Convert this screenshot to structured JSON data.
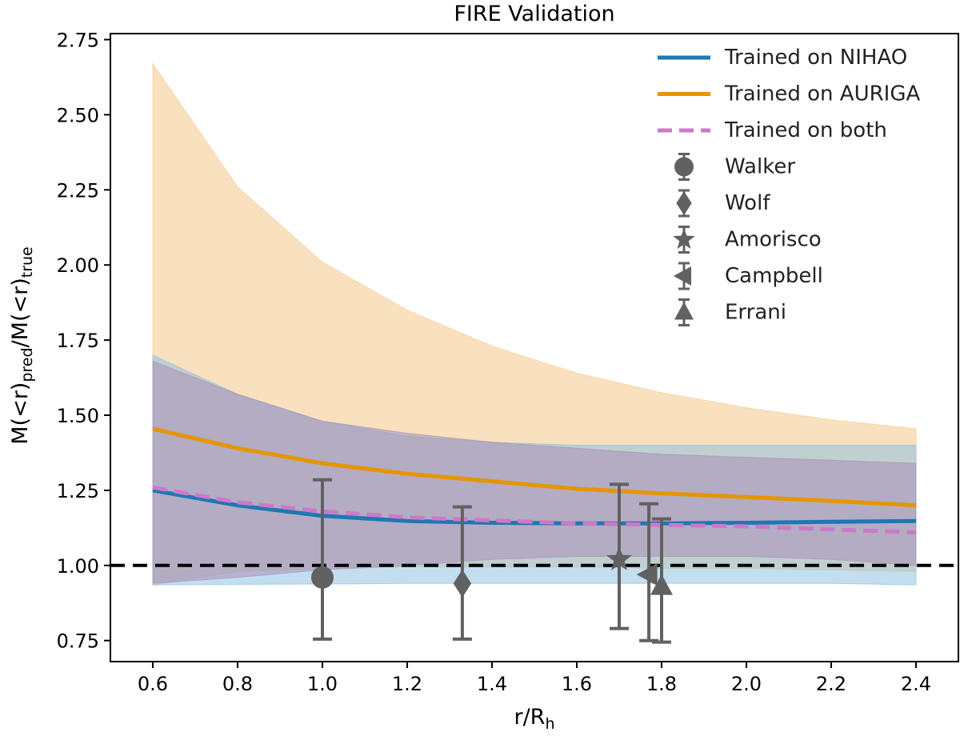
{
  "chart_data": {
    "type": "line",
    "title": "FIRE Validation",
    "xlabel": "r/R",
    "xlabel_sub": "h",
    "ylabel_parts": [
      "M(<r)",
      "pred",
      "/M(<r)",
      "true"
    ],
    "xlim": [
      0.5,
      2.5
    ],
    "ylim": [
      0.68,
      2.77
    ],
    "xticks": [
      "0.6",
      "0.8",
      "1.0",
      "1.2",
      "1.4",
      "1.6",
      "1.8",
      "2.0",
      "2.2",
      "2.4"
    ],
    "yticks": [
      "0.75",
      "1.00",
      "1.25",
      "1.50",
      "1.75",
      "2.00",
      "2.25",
      "2.50",
      "2.75"
    ],
    "reference_line": 1.0,
    "x": [
      0.6,
      0.8,
      1.0,
      1.2,
      1.4,
      1.6,
      1.8,
      2.0,
      2.2,
      2.4
    ],
    "series": [
      {
        "name": "Trained on NIHAO",
        "color": "#1f77b4",
        "style": "solid",
        "values": [
          1.25,
          1.2,
          1.165,
          1.148,
          1.142,
          1.14,
          1.14,
          1.142,
          1.145,
          1.148
        ],
        "band_lower": [
          0.935,
          0.937,
          0.938,
          0.94,
          0.94,
          0.94,
          0.94,
          0.94,
          0.94,
          0.935
        ],
        "band_upper": [
          1.7,
          1.57,
          1.48,
          1.43,
          1.41,
          1.4,
          1.4,
          1.4,
          1.4,
          1.4
        ],
        "band_color": "#87bde0"
      },
      {
        "name": "Trained on AURIGA",
        "color": "#e69500",
        "style": "solid",
        "values": [
          1.455,
          1.39,
          1.34,
          1.305,
          1.28,
          1.255,
          1.24,
          1.228,
          1.215,
          1.2
        ],
        "band_lower": [
          0.935,
          0.98,
          0.99,
          0.995,
          0.995,
          0.995,
          0.99,
          0.99,
          0.985,
          0.98
        ],
        "band_upper": [
          2.67,
          2.26,
          2.01,
          1.85,
          1.73,
          1.64,
          1.575,
          1.525,
          1.485,
          1.455
        ],
        "band_color": "#f4c98a"
      },
      {
        "name": "Trained on both",
        "color": "#cc79c7",
        "style": "dashed",
        "values": [
          1.26,
          1.21,
          1.18,
          1.16,
          1.15,
          1.14,
          1.135,
          1.13,
          1.12,
          1.11
        ],
        "band_lower": [
          0.94,
          0.96,
          0.985,
          1.0,
          1.02,
          1.03,
          1.03,
          1.03,
          1.02,
          1.0
        ],
        "band_upper": [
          1.68,
          1.57,
          1.48,
          1.44,
          1.41,
          1.39,
          1.37,
          1.36,
          1.35,
          1.34
        ],
        "band_color": "#a78fb8"
      }
    ],
    "estimators": [
      {
        "name": "Walker",
        "marker": "circle",
        "x": 1.0,
        "y": 0.96,
        "y_low": 0.755,
        "y_high": 1.285
      },
      {
        "name": "Wolf",
        "marker": "diamond",
        "x": 1.33,
        "y": 0.94,
        "y_low": 0.755,
        "y_high": 1.195
      },
      {
        "name": "Amorisco",
        "marker": "star",
        "x": 1.7,
        "y": 1.02,
        "y_low": 0.79,
        "y_high": 1.27
      },
      {
        "name": "Campbell",
        "marker": "triangle-left",
        "x": 1.77,
        "y": 0.97,
        "y_low": 0.75,
        "y_high": 1.205
      },
      {
        "name": "Errani",
        "marker": "triangle-up",
        "x": 1.8,
        "y": 0.93,
        "y_low": 0.745,
        "y_high": 1.155
      }
    ],
    "estimator_color": "#616161",
    "legend_position": "top-right"
  }
}
